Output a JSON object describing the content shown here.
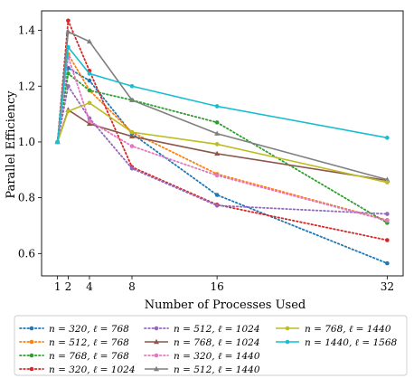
{
  "chart_data": {
    "type": "line",
    "xlabel": "Number of Processes Used",
    "ylabel": "Parallel Efficiency",
    "x": [
      1,
      2,
      4,
      8,
      16,
      32
    ],
    "xticks": [
      "1",
      "2",
      "4",
      "8",
      "16",
      "32"
    ],
    "yticks": [
      "0.6",
      "0.8",
      "1.0",
      "1.2",
      "1.4"
    ],
    "ytick_values": [
      0.6,
      0.8,
      1.0,
      1.2,
      1.4
    ],
    "xlim": [
      -0.5,
      33.5
    ],
    "ylim": [
      0.52,
      1.47
    ],
    "grid": false,
    "legend_position": "bottom",
    "series": [
      {
        "name": "n = 320, ℓ = 768",
        "color": "#1f77b4",
        "style": "dotted",
        "marker": "circle",
        "values": [
          1.0,
          1.265,
          1.22,
          1.03,
          0.81,
          0.565
        ]
      },
      {
        "name": "n = 512, ℓ = 768",
        "color": "#ff7f0e",
        "style": "dotted",
        "marker": "circle",
        "values": [
          1.0,
          1.315,
          1.185,
          1.035,
          0.885,
          0.72
        ]
      },
      {
        "name": "n = 768, ℓ = 768",
        "color": "#2ca02c",
        "style": "dotted",
        "marker": "circle",
        "values": [
          1.0,
          1.245,
          1.185,
          1.15,
          1.07,
          0.71
        ]
      },
      {
        "name": "n = 320, ℓ = 1024",
        "color": "#d62728",
        "style": "dotted",
        "marker": "circle",
        "values": [
          1.0,
          1.435,
          1.255,
          0.91,
          0.775,
          0.648
        ]
      },
      {
        "name": "n = 512, ℓ = 1024",
        "color": "#9467bd",
        "style": "dotted",
        "marker": "circle",
        "values": [
          1.0,
          1.2,
          1.085,
          0.905,
          0.772,
          0.742
        ]
      },
      {
        "name": "n = 768, ℓ = 1024",
        "color": "#8c564b",
        "style": "solid",
        "marker": "triangle",
        "values": [
          1.0,
          1.115,
          1.065,
          1.02,
          0.958,
          0.862
        ]
      },
      {
        "name": "n = 320, ℓ = 1440",
        "color": "#e377c2",
        "style": "dotted",
        "marker": "circle",
        "values": [
          1.0,
          1.305,
          1.075,
          0.985,
          0.88,
          0.718
        ]
      },
      {
        "name": "n = 512, ℓ = 1440",
        "color": "#7f7f7f",
        "style": "solid",
        "marker": "triangle",
        "values": [
          1.0,
          1.395,
          1.36,
          1.15,
          1.03,
          0.865
        ]
      },
      {
        "name": "n = 768, ℓ = 1440",
        "color": "#bcbd22",
        "style": "solid",
        "marker": "circle",
        "values": [
          1.0,
          1.11,
          1.14,
          1.035,
          0.992,
          0.855
        ]
      },
      {
        "name": "n = 1440, ℓ = 1568",
        "color": "#17becf",
        "style": "solid",
        "marker": "circle",
        "values": [
          1.0,
          1.34,
          1.245,
          1.2,
          1.128,
          1.015
        ]
      }
    ]
  }
}
